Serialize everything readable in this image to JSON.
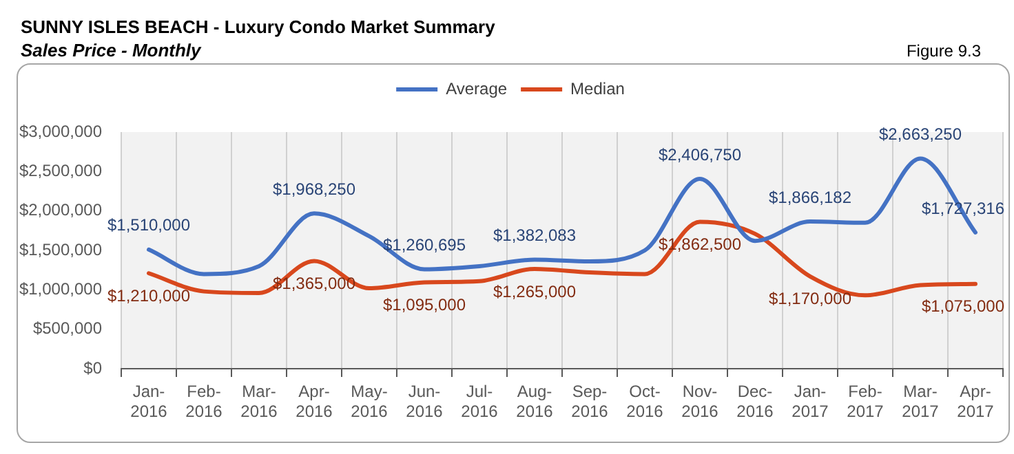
{
  "chart_data": {
    "type": "line",
    "title": "SUNNY ISLES BEACH - Luxury Condo Market Summary",
    "subtitle": "Sales Price - Monthly",
    "annotations": [
      "Figure 9.3"
    ],
    "categories": [
      "Jan-2016",
      "Feb-2016",
      "Mar-2016",
      "Apr-2016",
      "May-2016",
      "Jun-2016",
      "Jul-2016",
      "Aug-2016",
      "Sep-2016",
      "Oct-2016",
      "Nov-2016",
      "Dec-2016",
      "Jan-2017",
      "Feb-2017",
      "Mar-2017",
      "Apr-2017"
    ],
    "series": [
      {
        "name": "Average",
        "color": "#4472c4",
        "values": [
          1510000,
          1200000,
          1300000,
          1968250,
          1680000,
          1260695,
          1300000,
          1382083,
          1360000,
          1500000,
          2406750,
          1620000,
          1866182,
          1850000,
          2663250,
          1727316
        ],
        "value_labels": [
          "$1,510,000",
          null,
          null,
          "$1,968,250",
          null,
          "$1,260,695",
          null,
          "$1,382,083",
          null,
          null,
          "$2,406,750",
          null,
          "$1,866,182",
          null,
          "$2,663,250",
          "$1,727,316"
        ]
      },
      {
        "name": "Median",
        "color": "#d8481d",
        "values": [
          1210000,
          980000,
          960000,
          1365000,
          1020000,
          1095000,
          1110000,
          1265000,
          1220000,
          1200000,
          1862500,
          1710000,
          1170000,
          930000,
          1060000,
          1075000
        ],
        "value_labels": [
          "$1,210,000",
          null,
          null,
          "$1,365,000",
          null,
          "$1,095,000",
          null,
          "$1,265,000",
          null,
          null,
          "$1,862,500",
          null,
          "$1,170,000",
          null,
          null,
          "$1,075,000"
        ]
      }
    ],
    "ylim": [
      0,
      3000000
    ],
    "yticks": [
      {
        "value": 0,
        "label": "$0"
      },
      {
        "value": 500000,
        "label": "$500,000"
      },
      {
        "value": 1000000,
        "label": "$1,000,000"
      },
      {
        "value": 1500000,
        "label": "$1,500,000"
      },
      {
        "value": 2000000,
        "label": "$2,000,000"
      },
      {
        "value": 2500000,
        "label": "$2,500,000"
      },
      {
        "value": 3000000,
        "label": "$3,000,000"
      }
    ],
    "grid": "x",
    "legend": "top",
    "marker": "none",
    "line_style": "solid"
  }
}
